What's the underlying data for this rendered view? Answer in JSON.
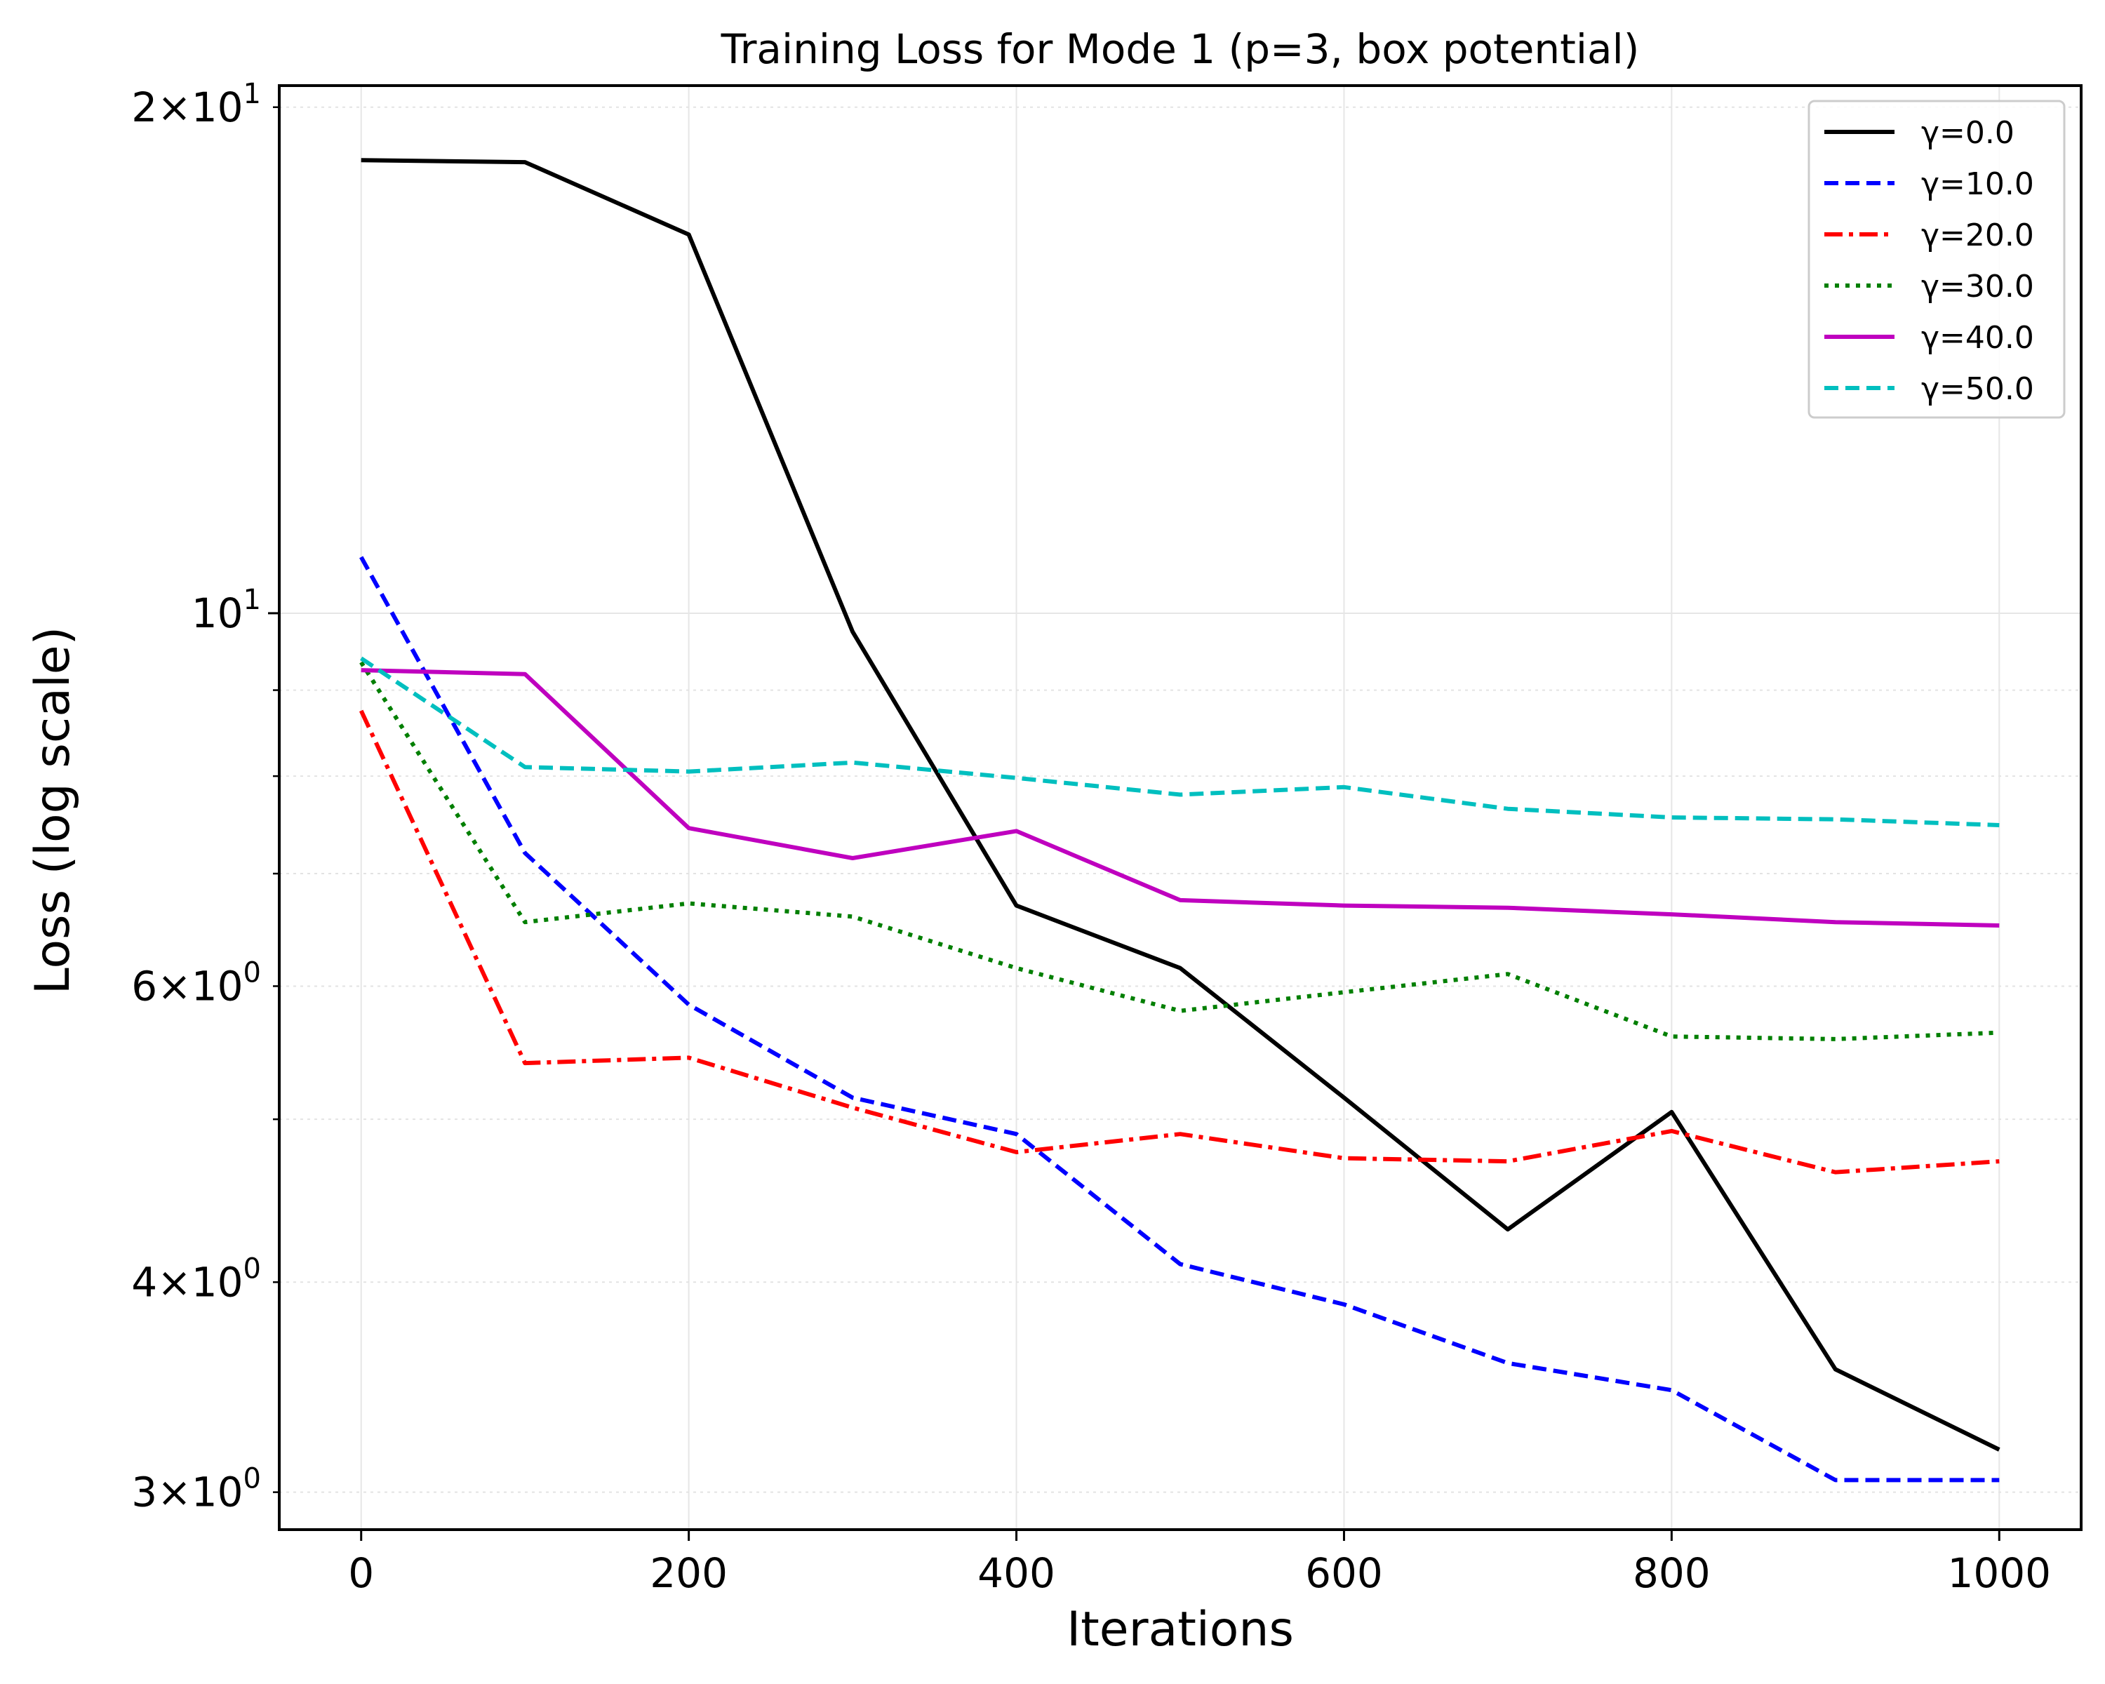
{
  "chart_data": {
    "type": "line",
    "title": "Training Loss for Mode 1 (p=3, box potential)",
    "xlabel": "Iterations",
    "ylabel": "Loss (log scale)",
    "yscale": "log",
    "xlim": [
      -50,
      1050
    ],
    "ylim": [
      2.85,
      20.6
    ],
    "grid": true,
    "legend_position": "top-right",
    "x_ticks": [
      {
        "value": 0,
        "label": "0"
      },
      {
        "value": 200,
        "label": "200"
      },
      {
        "value": 400,
        "label": "400"
      },
      {
        "value": 600,
        "label": "600"
      },
      {
        "value": 800,
        "label": "800"
      },
      {
        "value": 1000,
        "label": "1000"
      }
    ],
    "y_major_ticks": [
      {
        "value": 10,
        "base": "10",
        "exp": "1"
      }
    ],
    "y_minor_ticks": [
      {
        "value": 3,
        "mantissa": "3",
        "base": "10",
        "exp": "0"
      },
      {
        "value": 4,
        "mantissa": "4",
        "base": "10",
        "exp": "0"
      },
      {
        "value": 5,
        "mantissa": "",
        "base": "",
        "exp": ""
      },
      {
        "value": 6,
        "mantissa": "6",
        "base": "10",
        "exp": "0"
      },
      {
        "value": 7,
        "mantissa": "",
        "base": "",
        "exp": ""
      },
      {
        "value": 8,
        "mantissa": "",
        "base": "",
        "exp": ""
      },
      {
        "value": 9,
        "mantissa": "",
        "base": "",
        "exp": ""
      },
      {
        "value": 20,
        "mantissa": "2",
        "base": "10",
        "exp": "1"
      }
    ],
    "x": [
      0,
      100,
      200,
      300,
      400,
      500,
      600,
      700,
      800,
      900,
      1000
    ],
    "series": [
      {
        "name": "γ=0.0",
        "color": "#000000",
        "dash": "solid",
        "values": [
          18.6,
          18.55,
          16.8,
          9.75,
          6.7,
          6.15,
          5.15,
          4.3,
          5.05,
          3.55,
          3.18
        ]
      },
      {
        "name": "γ=10.0",
        "color": "#0000ff",
        "dash": "dashed",
        "values": [
          10.8,
          7.2,
          5.85,
          5.15,
          4.9,
          4.1,
          3.88,
          3.58,
          3.45,
          3.05,
          3.05
        ]
      },
      {
        "name": "γ=20.0",
        "color": "#ff0000",
        "dash": "dashdot",
        "values": [
          8.75,
          5.4,
          5.44,
          5.08,
          4.78,
          4.9,
          4.74,
          4.72,
          4.92,
          4.65,
          4.72
        ]
      },
      {
        "name": "γ=30.0",
        "color": "#007f00",
        "dash": "dotted",
        "values": [
          9.35,
          6.55,
          6.72,
          6.6,
          6.15,
          5.8,
          5.95,
          6.1,
          5.6,
          5.58,
          5.63
        ]
      },
      {
        "name": "γ=40.0",
        "color": "#bf00bf",
        "dash": "solid",
        "values": [
          9.25,
          9.2,
          7.45,
          7.15,
          7.42,
          6.75,
          6.7,
          6.68,
          6.62,
          6.55,
          6.52
        ]
      },
      {
        "name": "γ=50.0",
        "color": "#00bfbf",
        "dash": "dashed",
        "values": [
          9.4,
          8.1,
          8.05,
          8.15,
          7.98,
          7.8,
          7.88,
          7.65,
          7.56,
          7.54,
          7.48
        ]
      }
    ]
  }
}
